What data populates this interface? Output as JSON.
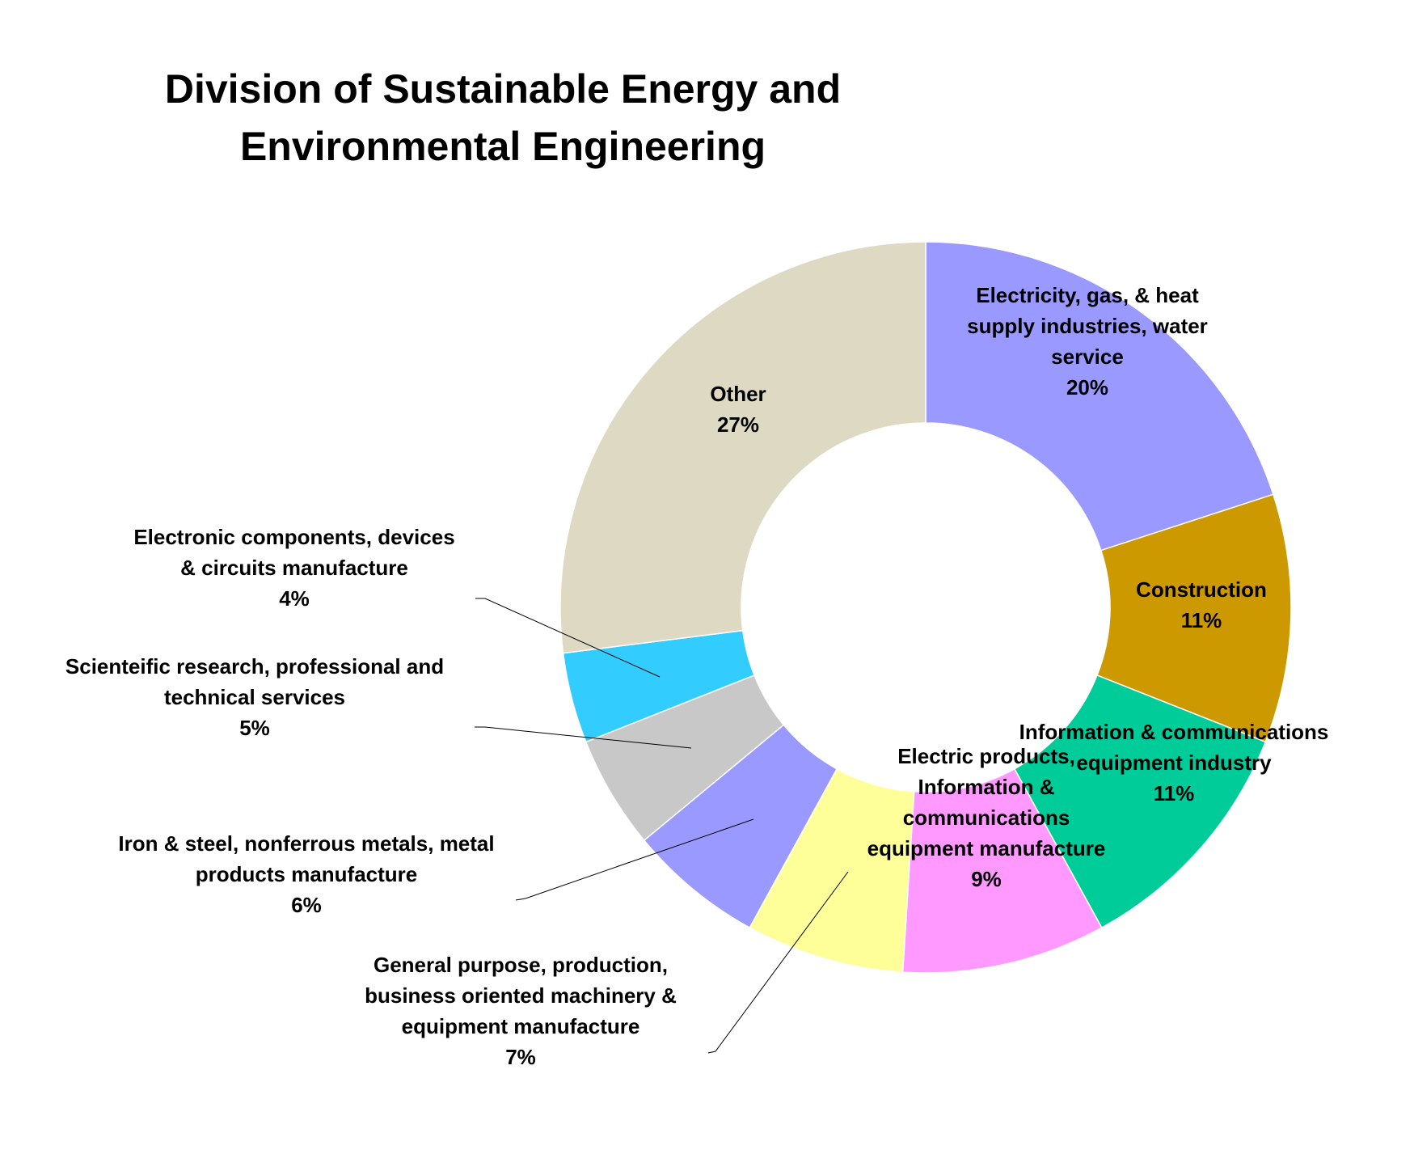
{
  "chart_data": {
    "type": "pie",
    "variant": "doughnut",
    "title": [
      "Division of Sustainable Energy and",
      "Environmental Engineering"
    ],
    "slices": [
      {
        "label": [
          "Electricity, gas, & heat",
          "supply industries, water",
          "service"
        ],
        "percent_label": "20%",
        "value": 20,
        "color": "#9999FF"
      },
      {
        "label": [
          "Construction"
        ],
        "percent_label": "11%",
        "value": 11,
        "color": "#CC9900"
      },
      {
        "label": [
          "Information & communications",
          "equipment industry"
        ],
        "percent_label": "11%",
        "value": 11,
        "color": "#00CC99"
      },
      {
        "label": [
          "Electric products,",
          "Information &",
          "communications",
          "equipment manufacture"
        ],
        "percent_label": "9%",
        "value": 9,
        "color": "#FF99FF"
      },
      {
        "label": [
          "General purpose, production,",
          "business oriented machinery &",
          "equipment manufacture"
        ],
        "percent_label": "7%",
        "value": 7,
        "color": "#FFFF99"
      },
      {
        "label": [
          "Iron & steel, nonferrous metals, metal",
          "products manufacture"
        ],
        "percent_label": "6%",
        "value": 6,
        "color": "#9999FF"
      },
      {
        "label": [
          "Scienteific research, professional and",
          "technical services"
        ],
        "percent_label": "5%",
        "value": 5,
        "color": "#C8C8C8"
      },
      {
        "label": [
          "Electronic components, devices",
          "& circuits manufacture"
        ],
        "percent_label": "4%",
        "value": 4,
        "color": "#33CCFF"
      },
      {
        "label": [
          "Other"
        ],
        "percent_label": "27%",
        "value": 27,
        "color": "#DDD9C3"
      }
    ],
    "legend": "none",
    "data_labels": "category and percentage"
  }
}
